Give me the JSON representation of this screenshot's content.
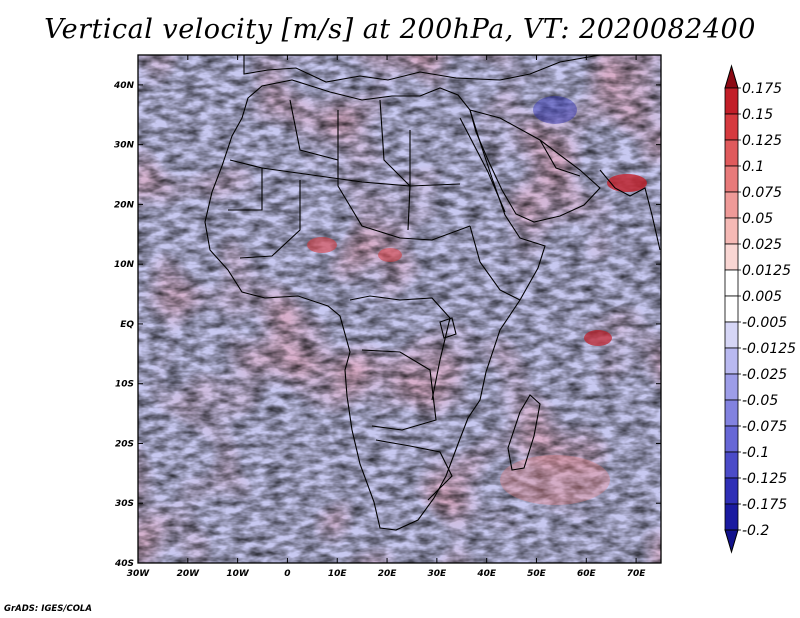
{
  "title": "Vertical velocity [m/s] at 200hPa, VT: 2020082400",
  "credit": "GrADS: IGES/COLA",
  "axes": {
    "lon_ticks": [
      "30W",
      "20W",
      "10W",
      "0",
      "10E",
      "20E",
      "30E",
      "40E",
      "50E",
      "60E",
      "70E"
    ],
    "lat_ticks": [
      "40N",
      "30N",
      "20N",
      "10N",
      "EQ",
      "10S",
      "20S",
      "30S",
      "40S"
    ]
  },
  "colorbar": {
    "levels": [
      "0.175",
      "0.15",
      "0.125",
      "0.1",
      "0.075",
      "0.05",
      "0.025",
      "0.0125",
      "0.005",
      "-0.005",
      "-0.0125",
      "-0.025",
      "-0.05",
      "-0.075",
      "-0.1",
      "-0.125",
      "-0.175",
      "-0.2"
    ],
    "colors": [
      "#a0141e",
      "#c21e28",
      "#d63a3f",
      "#e05a5c",
      "#e87a7a",
      "#ef9a98",
      "#f5b9b5",
      "#f9d6d3",
      "#ffffff",
      "#ffffff",
      "#d6d6f6",
      "#b9b9f0",
      "#9d9de8",
      "#8282e0",
      "#6767d6",
      "#4b4bc8",
      "#2f2fb6",
      "#1a1aa0"
    ],
    "top_arrow_color": "#8c0a14",
    "bottom_arrow_color": "#12128c"
  },
  "map": {
    "region": "Africa",
    "field": "Vertical velocity at 200hPa",
    "lon_range": [
      -30,
      75
    ],
    "lat_range": [
      -40,
      45
    ],
    "ocean_tint": "#cfd0f2"
  }
}
